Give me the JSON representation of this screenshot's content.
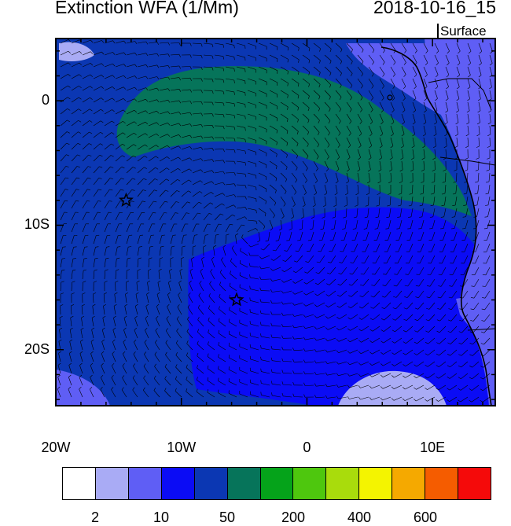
{
  "title": "Extinction WFA (1/Mm)",
  "datetime": "2018-10-16_15",
  "level": "Surface",
  "axes": {
    "y_ticks": [
      {
        "label": "0",
        "value": 0
      },
      {
        "label": "10S",
        "value": -10
      },
      {
        "label": "20S",
        "value": -20
      }
    ],
    "x_ticks": [
      {
        "label": "20W",
        "value": -20
      },
      {
        "label": "10W",
        "value": -10
      },
      {
        "label": "0",
        "value": 0
      },
      {
        "label": "10E",
        "value": 10
      }
    ],
    "lon_range": [
      -20,
      15
    ],
    "lat_range": [
      -24.5,
      5
    ]
  },
  "markers": [
    {
      "name": "star-marker",
      "lon": -14.4,
      "lat": -8.0
    },
    {
      "name": "star-marker",
      "lon": -5.6,
      "lat": -16.0
    }
  ],
  "colorbar": {
    "colors": [
      "#ffffff",
      "#a9abf5",
      "#5f5ef5",
      "#0b0cf5",
      "#0b37b3",
      "#06745a",
      "#05a31a",
      "#4ec70e",
      "#a9dc0c",
      "#f4f400",
      "#f5a900",
      "#f55c00",
      "#f50a0a"
    ],
    "labels": [
      {
        "text": "2",
        "index": 1
      },
      {
        "text": "10",
        "index": 3
      },
      {
        "text": "50",
        "index": 5
      },
      {
        "text": "200",
        "index": 7
      },
      {
        "text": "400",
        "index": 9
      },
      {
        "text": "600",
        "index": 11
      }
    ]
  },
  "map_colors": {
    "ocean_base": "#0b37b3",
    "green_band": "#06745a",
    "bright_blue": "#0b0cf5",
    "light_blue": "#a9abf5",
    "mid_blue": "#5f5ef5",
    "coastline": "#000000"
  }
}
